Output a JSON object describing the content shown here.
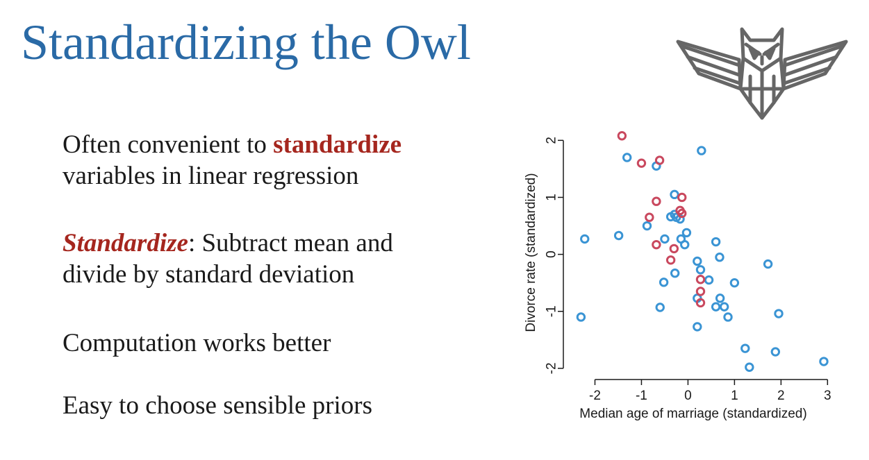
{
  "slide": {
    "title": "Standardizing the Owl",
    "bullets": {
      "b1_pre": "Often convenient to ",
      "b1_highlight": "standardize",
      "b1_post": "variables in linear regression",
      "b2_highlight": "Standardize",
      "b2_text": ": Subtract mean and",
      "b2_text_2": "divide by standard deviation",
      "b3_text": "Computation works better",
      "b4_text": "Easy to choose sensible priors"
    }
  },
  "colors": {
    "title": "#2a6aa6",
    "highlight": "#a5261e",
    "series_blue": "#3a94d4",
    "series_red": "#c9485e",
    "logo": "#666666"
  },
  "icons": {
    "logo": "owl-logo-icon"
  },
  "chart_data": {
    "type": "scatter",
    "xlabel": "Median age of marriage (standardized)",
    "ylabel": "Divorce rate (standardized)",
    "xlim": [
      -2.5,
      3.1
    ],
    "ylim": [
      -2.05,
      2.15
    ],
    "xticks": [
      -2,
      -1,
      0,
      1,
      2,
      3
    ],
    "yticks": [
      -2,
      -1,
      0,
      1,
      2
    ],
    "xtick_labels": [
      "-2",
      "-1",
      "0",
      "1",
      "2",
      "3"
    ],
    "ytick_labels": [
      "-2",
      "-1",
      "0",
      "1",
      "2"
    ],
    "grid": false,
    "legend": "none",
    "marker": "open-circle",
    "series": [
      {
        "color": "#3a94d4",
        "points": [
          [
            -2.3,
            -1.1
          ],
          [
            -2.22,
            0.27
          ],
          [
            -1.31,
            1.7
          ],
          [
            -1.49,
            0.33
          ],
          [
            -0.68,
            1.55
          ],
          [
            0.29,
            1.82
          ],
          [
            -0.29,
            1.05
          ],
          [
            -0.29,
            0.7
          ],
          [
            -0.37,
            0.66
          ],
          [
            -0.25,
            0.65
          ],
          [
            -0.17,
            0.62
          ],
          [
            -0.88,
            0.5
          ],
          [
            -0.03,
            0.38
          ],
          [
            -0.15,
            0.27
          ],
          [
            -0.5,
            0.27
          ],
          [
            -0.07,
            0.17
          ],
          [
            0.6,
            0.22
          ],
          [
            0.68,
            -0.05
          ],
          [
            0.2,
            -0.12
          ],
          [
            0.27,
            -0.27
          ],
          [
            -0.28,
            -0.33
          ],
          [
            0.45,
            -0.45
          ],
          [
            -0.52,
            -0.49
          ],
          [
            1.0,
            -0.5
          ],
          [
            0.2,
            -0.77
          ],
          [
            0.69,
            -0.77
          ],
          [
            0.6,
            -0.92
          ],
          [
            0.78,
            -0.92
          ],
          [
            -0.6,
            -0.93
          ],
          [
            0.86,
            -1.1
          ],
          [
            1.72,
            -0.17
          ],
          [
            1.95,
            -1.04
          ],
          [
            0.2,
            -1.27
          ],
          [
            1.23,
            -1.65
          ],
          [
            1.88,
            -1.71
          ],
          [
            1.32,
            -1.98
          ],
          [
            2.92,
            -1.88
          ]
        ]
      },
      {
        "color": "#c9485e",
        "points": [
          [
            -1.42,
            2.08
          ],
          [
            -1.0,
            1.6
          ],
          [
            -0.61,
            1.65
          ],
          [
            -0.68,
            0.93
          ],
          [
            -0.13,
            1.0
          ],
          [
            -0.17,
            0.77
          ],
          [
            -0.13,
            0.72
          ],
          [
            -0.83,
            0.65
          ],
          [
            -0.68,
            0.17
          ],
          [
            -0.3,
            0.1
          ],
          [
            -0.37,
            -0.1
          ],
          [
            0.27,
            -0.44
          ],
          [
            0.27,
            -0.65
          ],
          [
            0.27,
            -0.85
          ]
        ]
      }
    ]
  }
}
